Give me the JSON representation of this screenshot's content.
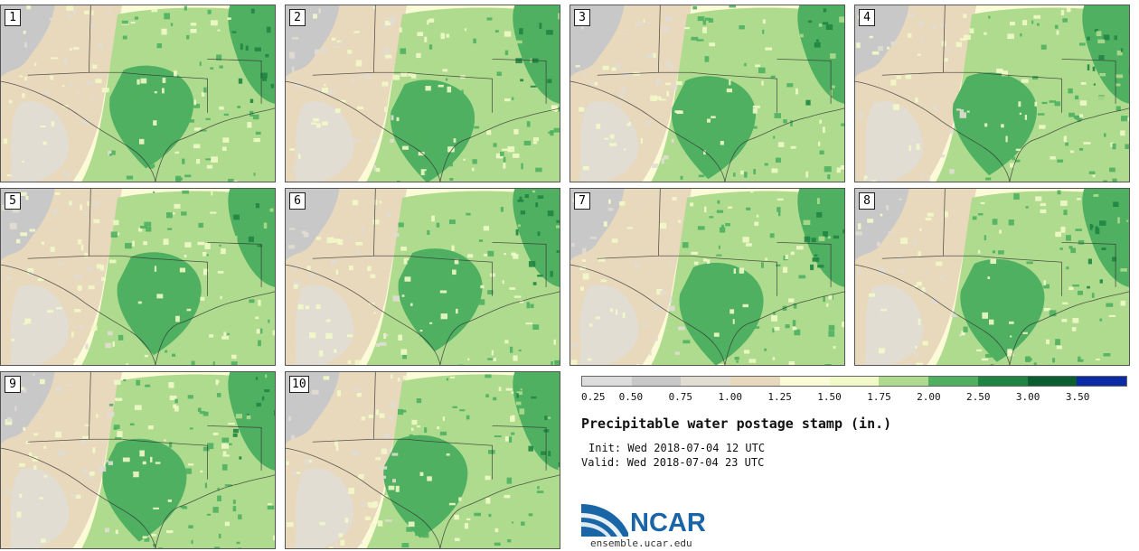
{
  "panels": [
    {
      "label": "1"
    },
    {
      "label": "2"
    },
    {
      "label": "3"
    },
    {
      "label": "4"
    },
    {
      "label": "5"
    },
    {
      "label": "6"
    },
    {
      "label": "7"
    },
    {
      "label": "8"
    },
    {
      "label": "9"
    },
    {
      "label": "10"
    }
  ],
  "colorbar": {
    "colors": [
      "#dcdcdc",
      "#c8c8c8",
      "#e1ddd2",
      "#e8d8bc",
      "#fcfbd8",
      "#f2f9c8",
      "#aedb8e",
      "#4fb061",
      "#1f8543",
      "#0b5e30",
      "#0a2aa6"
    ],
    "ticks": [
      "0.25",
      "0.50",
      "0.75",
      "1.00",
      "1.25",
      "1.50",
      "1.75",
      "2.00",
      "2.50",
      "3.00",
      "3.50"
    ]
  },
  "title": "Precipitable water postage stamp (in.)",
  "init": "Init: Wed 2018-07-04 12 UTC",
  "valid": "Valid: Wed 2018-07-04 23 UTC",
  "logo": {
    "text": "NCAR",
    "url": "ensemble.ucar.edu",
    "color": "#1a65a6"
  }
}
